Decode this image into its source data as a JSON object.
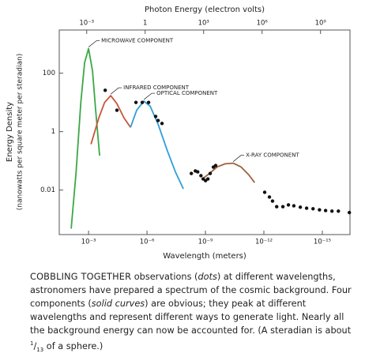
{
  "chart_data": {
    "type": "line",
    "x_title": "Wavelength (meters)",
    "x2_title": "Photon Energy (electron volts)",
    "ylabel": [
      "Energy Density",
      "(nanowatts per square meter per steradian)"
    ],
    "xlog": true,
    "x2log": true,
    "ylog": true,
    "xlim": [
      0.032,
      3.8e-17
    ],
    "xticks": [
      {
        "value": 0.001,
        "label": "10⁻³"
      },
      {
        "value": 1e-06,
        "label": "10⁻⁶"
      },
      {
        "value": 1e-09,
        "label": "10⁻⁹"
      },
      {
        "value": 1e-12,
        "label": "10⁻¹²"
      },
      {
        "value": 1e-15,
        "label": "10⁻¹⁵"
      }
    ],
    "x2lim": [
      3.9e-05,
      32600000000.0
    ],
    "x2ticks": [
      {
        "value": 0.001,
        "label": "10⁻³"
      },
      1,
      {
        "value": 1000,
        "label": "10³"
      },
      {
        "value": 1000000,
        "label": "10⁶"
      },
      {
        "value": 1000000000,
        "label": "10⁹"
      }
    ],
    "ylim": [
      0.0003,
      3000
    ],
    "yticks": [
      0.01,
      1,
      100
    ],
    "series": [
      {
        "name": "MICROWAVE COMPONENT",
        "color": "#3aa845",
        "type": "line",
        "x": [
          0.0078,
          0.0044,
          0.0025,
          0.0016,
          0.001,
          0.00063,
          0.00043,
          0.00027
        ],
        "values": [
          0.00048,
          0.037,
          10,
          230,
          690,
          120,
          5.4,
          0.15
        ]
      },
      {
        "name": "INFRARED COMPONENT",
        "color": "#c8553a",
        "type": "line",
        "x": [
          0.00075,
          0.0003,
          0.00015,
          7.3e-05,
          3.5e-05,
          1.5e-05,
          7e-06
        ],
        "values": [
          0.37,
          2.9,
          10,
          17,
          9,
          2.9,
          1.4
        ]
      },
      {
        "name": "OPTICAL COMPONENT",
        "color": "#2f9fd8",
        "type": "line",
        "x": [
          7e-06,
          3.4e-06,
          1.45e-06,
          6.9e-07,
          2.7e-07,
          8.8e-08,
          3.5e-08,
          1.36e-08
        ],
        "values": [
          1.4,
          5.4,
          11,
          7.4,
          1.8,
          0.21,
          0.042,
          0.011
        ]
      },
      {
        "name": "X-RAY COMPONENT",
        "color": "#a0603a",
        "type": "line",
        "x": [
          1.6e-09,
          6.2e-10,
          2.5e-10,
          9.6e-11,
          3.8e-11,
          1.5e-11,
          5.9e-12,
          3e-12
        ],
        "values": [
          0.023,
          0.037,
          0.062,
          0.079,
          0.083,
          0.062,
          0.033,
          0.018
        ]
      },
      {
        "color": "#111111",
        "type": "scatter",
        "x": [
          0.00014,
          3.5e-05,
          3.7e-06,
          1.75e-06,
          8.3e-07,
          3.6e-07,
          2.7e-07,
          1.7e-07,
          5.3e-09,
          3.3e-09,
          2.5e-09,
          1.7e-09,
          1.3e-09,
          9.9e-10,
          7.5e-10,
          5.7e-10,
          3.9e-10,
          3e-10,
          9.1e-13,
          5.2e-13,
          3.6e-13,
          2.2e-13,
          1.06e-13,
          5.5e-14,
          2.9e-14,
          1.35e-14,
          6.4e-15,
          3e-15,
          1.4e-15,
          6.8e-16,
          3.2e-16,
          1.5e-16,
          4.1e-17
        ],
        "values": [
          26,
          5.4,
          10,
          10,
          10,
          3.3,
          2.4,
          1.9,
          0.037,
          0.045,
          0.042,
          0.031,
          0.024,
          0.021,
          0.024,
          0.037,
          0.061,
          0.069,
          0.0084,
          0.0058,
          0.0042,
          0.0027,
          0.0027,
          0.0031,
          0.0029,
          0.0026,
          0.0024,
          0.0023,
          0.0021,
          0.002,
          0.0019,
          0.0019,
          0.0017
        ]
      }
    ]
  },
  "caption": [
    "COBBLING TOGETHER",
    " observations (",
    "dots",
    ") at different wavelengths, astronomers have prepared a spectrum of the cosmic background. Four components (",
    "solid curves",
    ") are obvious; they peak at different wavelengths and represent different ways to generate light. Nearly all the background energy can now be accounted for. (A steradian is about ",
    "1",
    "/",
    "13",
    " of a sphere.)"
  ]
}
